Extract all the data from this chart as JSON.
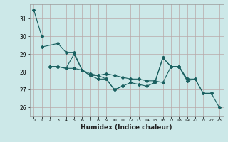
{
  "title": "",
  "xlabel": "Humidex (Indice chaleur)",
  "ylabel": "",
  "bg_color": "#cce8e8",
  "grid_color": "#b8a8a8",
  "line_color": "#1a6060",
  "xlim": [
    -0.5,
    23.5
  ],
  "ylim": [
    25.5,
    31.8
  ],
  "yticks": [
    26,
    27,
    28,
    29,
    30,
    31
  ],
  "xticks": [
    0,
    1,
    2,
    3,
    4,
    5,
    6,
    7,
    8,
    9,
    10,
    11,
    12,
    13,
    14,
    15,
    16,
    17,
    18,
    19,
    20,
    21,
    22,
    23
  ],
  "series": [
    [
      [
        0,
        1
      ],
      [
        31.5,
        30.0
      ]
    ],
    [
      [
        1,
        3,
        4,
        5,
        6,
        7,
        8,
        9,
        10,
        11,
        12,
        13,
        14,
        15,
        16,
        17,
        18,
        19,
        20,
        21,
        22,
        23
      ],
      [
        29.4,
        29.6,
        29.1,
        29.1,
        28.1,
        27.8,
        27.8,
        27.6,
        27.0,
        27.2,
        27.4,
        27.3,
        27.2,
        27.4,
        28.8,
        28.3,
        28.3,
        27.6,
        27.6,
        26.8,
        26.8,
        26.0
      ]
    ],
    [
      [
        2,
        3,
        4,
        5,
        6,
        7,
        8,
        9,
        10,
        11
      ],
      [
        28.3,
        28.3,
        28.2,
        29.0,
        28.1,
        27.8,
        27.6,
        27.6,
        27.0,
        27.2
      ]
    ],
    [
      [
        2,
        3,
        4,
        5,
        6,
        7,
        8,
        9,
        10,
        11,
        12,
        13,
        14,
        15,
        16,
        17,
        18,
        19,
        20,
        21,
        22
      ],
      [
        28.3,
        28.3,
        28.2,
        28.2,
        28.1,
        27.9,
        27.8,
        27.9,
        27.8,
        27.7,
        27.6,
        27.6,
        27.5,
        27.5,
        27.4,
        28.3,
        28.3,
        27.5,
        27.6,
        26.8,
        26.8
      ]
    ],
    [
      [
        15,
        16,
        17,
        18,
        19
      ],
      [
        27.4,
        28.8,
        28.3,
        28.3,
        27.6
      ]
    ]
  ]
}
